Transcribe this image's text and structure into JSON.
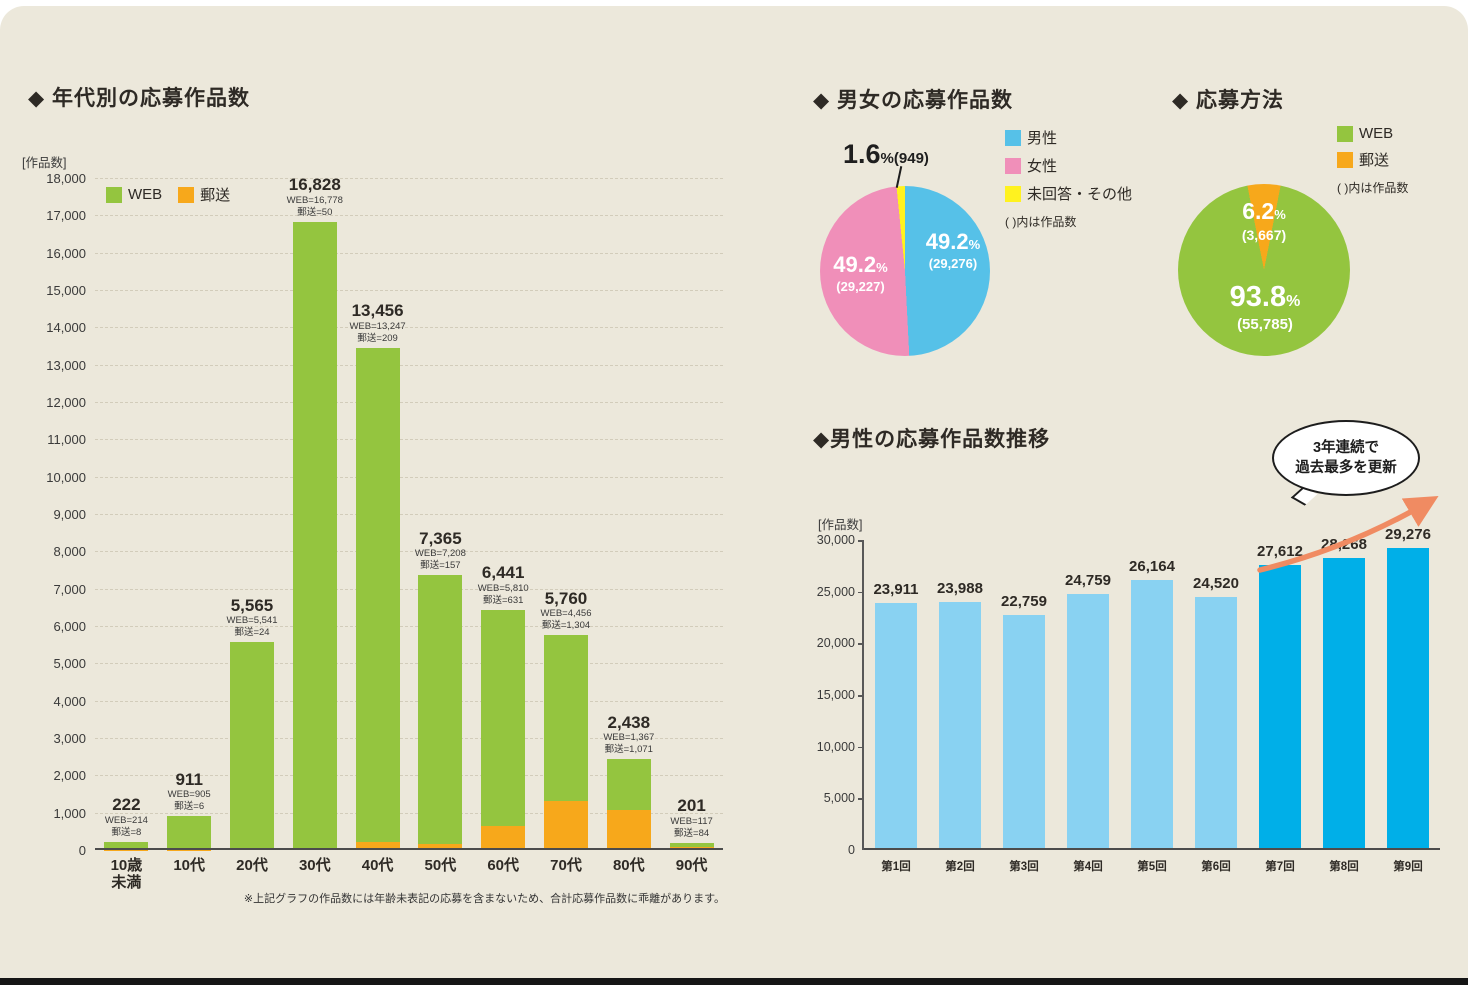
{
  "page": {
    "background": "#ECE8DB",
    "percent_sign": "%",
    "accent_colors": {
      "web_green": "#94C53F",
      "mail_orange": "#F7A81B",
      "male_blue": "#56C1E8",
      "female_pink": "#F08FB9",
      "other_yellow": "#FFF21F",
      "trend_light_blue": "#89D2F2",
      "trend_highlight_blue": "#00AFE8",
      "arrow_coral": "#F08B62"
    }
  },
  "chart_data": [
    {
      "id": "age_distribution",
      "type": "bar",
      "stacked": true,
      "title": "◆ 年代別の応募作品数",
      "unit_label": "[作品数]",
      "categories": [
        "10歳\n未満",
        "10代",
        "20代",
        "30代",
        "40代",
        "50代",
        "60代",
        "70代",
        "80代",
        "90代"
      ],
      "series": [
        {
          "name": "WEB",
          "color": "#94C53F",
          "values": [
            214,
            905,
            5541,
            16778,
            13247,
            7208,
            5810,
            4456,
            1367,
            117
          ]
        },
        {
          "name": "郵送",
          "color": "#F7A81B",
          "values": [
            8,
            6,
            24,
            50,
            209,
            157,
            631,
            1304,
            1071,
            84
          ]
        }
      ],
      "totals": [
        "222",
        "911",
        "5,565",
        "16,828",
        "13,456",
        "7,365",
        "6,441",
        "5,760",
        "2,438",
        "201"
      ],
      "detail_labels": [
        [
          "WEB=214",
          "郵送=8"
        ],
        [
          "WEB=905",
          "郵送=6"
        ],
        [
          "WEB=5,541",
          "郵送=24"
        ],
        [
          "WEB=16,778",
          "郵送=50"
        ],
        [
          "WEB=13,247",
          "郵送=209"
        ],
        [
          "WEB=7,208",
          "郵送=157"
        ],
        [
          "WEB=5,810",
          "郵送=631"
        ],
        [
          "WEB=4,456",
          "郵送=1,304"
        ],
        [
          "WEB=1,367",
          "郵送=1,071"
        ],
        [
          "WEB=117",
          "郵送=84"
        ]
      ],
      "ylim": [
        0,
        18000
      ],
      "ytick_step": 1000,
      "grid": "dashed-horizontal",
      "legend_position": "top-left-inside",
      "footnote": "※上記グラフの作品数には年齢未表記の応募を含まないため、合計応募作品数に乖離があります。"
    },
    {
      "id": "gender_share",
      "type": "pie",
      "title": "◆ 男女の応募作品数",
      "note": "( )内は作品数",
      "legend_position": "right",
      "slices": [
        {
          "label": "男性",
          "pct": 49.2,
          "pct_label": "49.2",
          "count_label": "(29,276)",
          "color": "#56C1E8"
        },
        {
          "label": "女性",
          "pct": 49.2,
          "pct_label": "49.2",
          "count_label": "(29,227)",
          "color": "#F08FB9"
        },
        {
          "label": "未回答・その他",
          "pct": 1.6,
          "pct_label": "1.6",
          "count_label": "(949)",
          "color": "#FFF21F"
        }
      ]
    },
    {
      "id": "method_share",
      "type": "pie",
      "title": "◆ 応募方法",
      "note": "( )内は作品数",
      "legend_position": "right",
      "top_center_index": 1,
      "slices": [
        {
          "label": "WEB",
          "pct": 93.8,
          "pct_label": "93.8",
          "count_label": "(55,785)",
          "color": "#94C53F"
        },
        {
          "label": "郵送",
          "pct": 6.2,
          "pct_label": "6.2",
          "count_label": "(3,667)",
          "color": "#F7A81B"
        }
      ]
    },
    {
      "id": "male_trend",
      "type": "bar",
      "title": "◆男性の応募作品数推移",
      "unit_label": "[作品数]",
      "categories": [
        "第1回",
        "第2回",
        "第3回",
        "第4回",
        "第5回",
        "第6回",
        "第7回",
        "第8回",
        "第9回"
      ],
      "values": [
        23911,
        23988,
        22759,
        24759,
        26164,
        24520,
        27612,
        28268,
        29276
      ],
      "value_labels": [
        "23,911",
        "23,988",
        "22,759",
        "24,759",
        "26,164",
        "24,520",
        "27,612",
        "28,268",
        "29,276"
      ],
      "bar_color": "#89D2F2",
      "highlight_color": "#00AFE8",
      "highlight_from_index": 6,
      "ylim": [
        0,
        30000
      ],
      "ytick_step": 5000,
      "grid": "none",
      "callout": {
        "line1": "3年連続で",
        "line2": "過去最多を更新"
      }
    }
  ]
}
